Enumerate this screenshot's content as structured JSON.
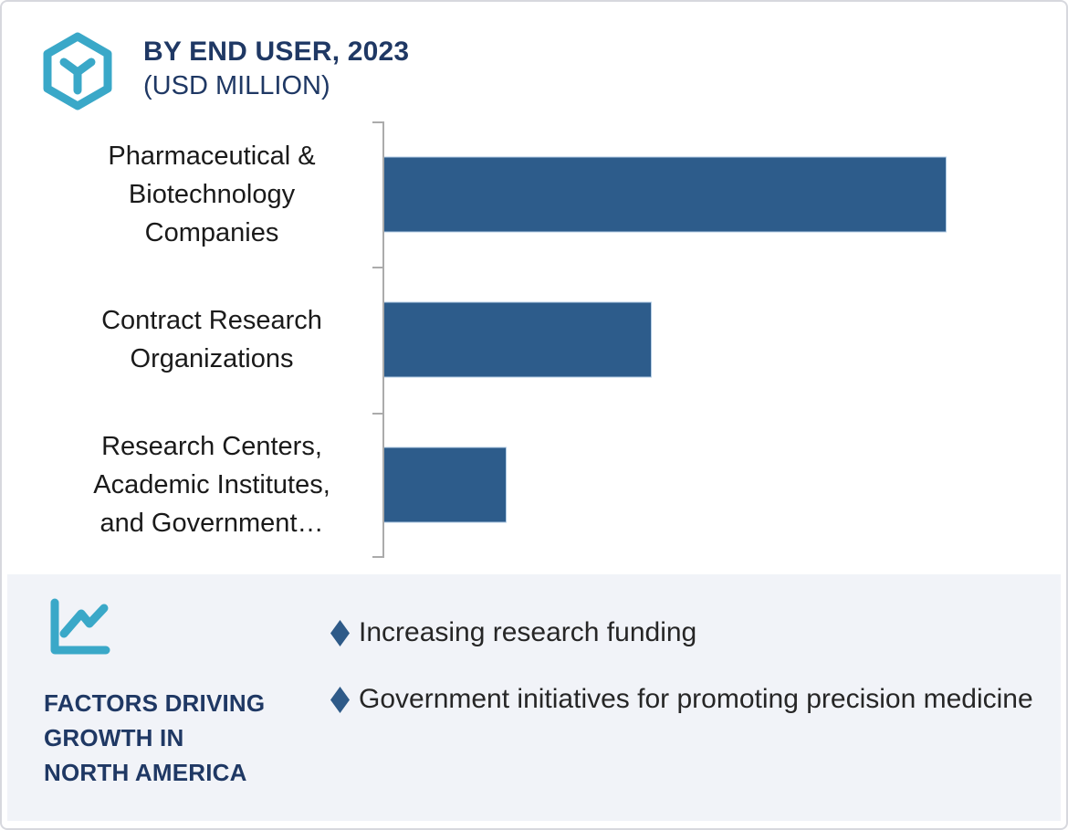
{
  "header": {
    "title_line1": "BY END USER, 2023",
    "title_line2": "(USD MILLION)",
    "icon": "hexagon-cube-icon"
  },
  "chart_data": {
    "type": "bar",
    "orientation": "horizontal",
    "title": "BY END USER, 2023",
    "subtitle": "(USD MILLION)",
    "unit": "USD Million",
    "categories": [
      "Pharmaceutical & Biotechnology Companies",
      "Contract Research Organizations",
      "Research Centers, Academic Institutes, and Government…"
    ],
    "categories_display": [
      "Pharmaceutical &\nBiotechnology\nCompanies",
      "Contract Research\nOrganizations",
      "Research Centers,\nAcademic Institutes,\nand Government…"
    ],
    "values_relative_pct": [
      100,
      47.5,
      21.6
    ],
    "value_labels_shown": false,
    "axis_tick_labels_shown": false,
    "grid": false,
    "legend": "none",
    "bar_color": "#2d5c8b",
    "axis_color": "#ababab"
  },
  "footer": {
    "heading": "FACTORS DRIVING\nGROWTH IN\nNORTH AMERICA",
    "icon": "line-chart-icon",
    "bullets": [
      "Increasing research funding",
      "Government initiatives for promoting precision medicine"
    ],
    "bullet_color": "#2e5a88",
    "panel_bg": "#f1f3f8"
  },
  "colors": {
    "accent_teal": "#3aa8c8",
    "navy": "#1f3864",
    "bar_blue": "#2d5c8b",
    "card_border": "#d7d8de"
  }
}
